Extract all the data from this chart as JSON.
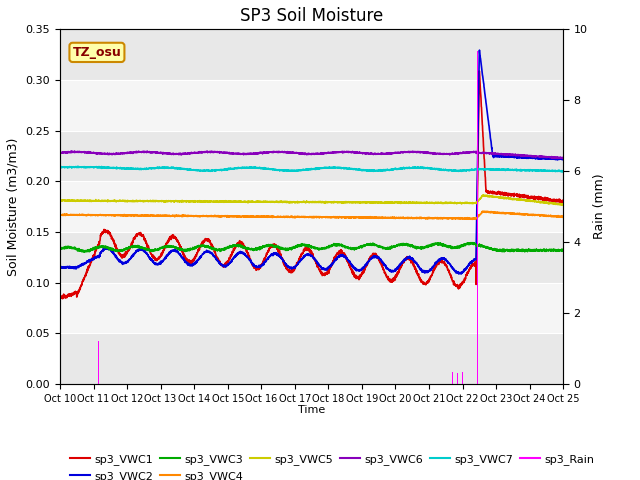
{
  "title": "SP3 Soil Moisture",
  "xlabel": "Time",
  "ylabel_left": "Soil Moisture (m3/m3)",
  "ylabel_right": "Rain (mm)",
  "xlim_days": [
    0,
    25
  ],
  "ylim_left": [
    0.0,
    0.35
  ],
  "ylim_right": [
    0.0,
    10.0
  ],
  "x_tick_labels": [
    "Oct 10",
    "Oct 11",
    "Oct 12",
    "Oct 13",
    "Oct 14",
    "Oct 15",
    "Oct 16",
    "Oct 17",
    "Oct 18",
    "Oct 19",
    "Oct 20",
    "Oct 21",
    "Oct 22",
    "Oct 23",
    "Oct 24",
    "Oct 25"
  ],
  "bg_color": "#e8e8e8",
  "bg_color2": "#f5f5f5",
  "annotation_label": "TZ_osu",
  "annotation_color": "#ffffaa",
  "annotation_border": "#cc8800",
  "series_colors": {
    "sp3_VWC1": "#dd0000",
    "sp3_VWC2": "#0000dd",
    "sp3_VWC3": "#00aa00",
    "sp3_VWC4": "#ff8800",
    "sp3_VWC5": "#cccc00",
    "sp3_VWC6": "#8800bb",
    "sp3_VWC7": "#00cccc",
    "sp3_Rain": "#ff00ff"
  },
  "legend_entries": [
    {
      "label": "sp3_VWC1",
      "color": "#dd0000"
    },
    {
      "label": "sp3_VWC2",
      "color": "#0000dd"
    },
    {
      "label": "sp3_VWC3",
      "color": "#00aa00"
    },
    {
      "label": "sp3_VWC4",
      "color": "#ff8800"
    },
    {
      "label": "sp3_VWC5",
      "color": "#cccc00"
    },
    {
      "label": "sp3_VWC6",
      "color": "#8800bb"
    },
    {
      "label": "sp3_VWC7",
      "color": "#00cccc"
    },
    {
      "label": "sp3_Rain",
      "color": "#ff00ff"
    }
  ]
}
